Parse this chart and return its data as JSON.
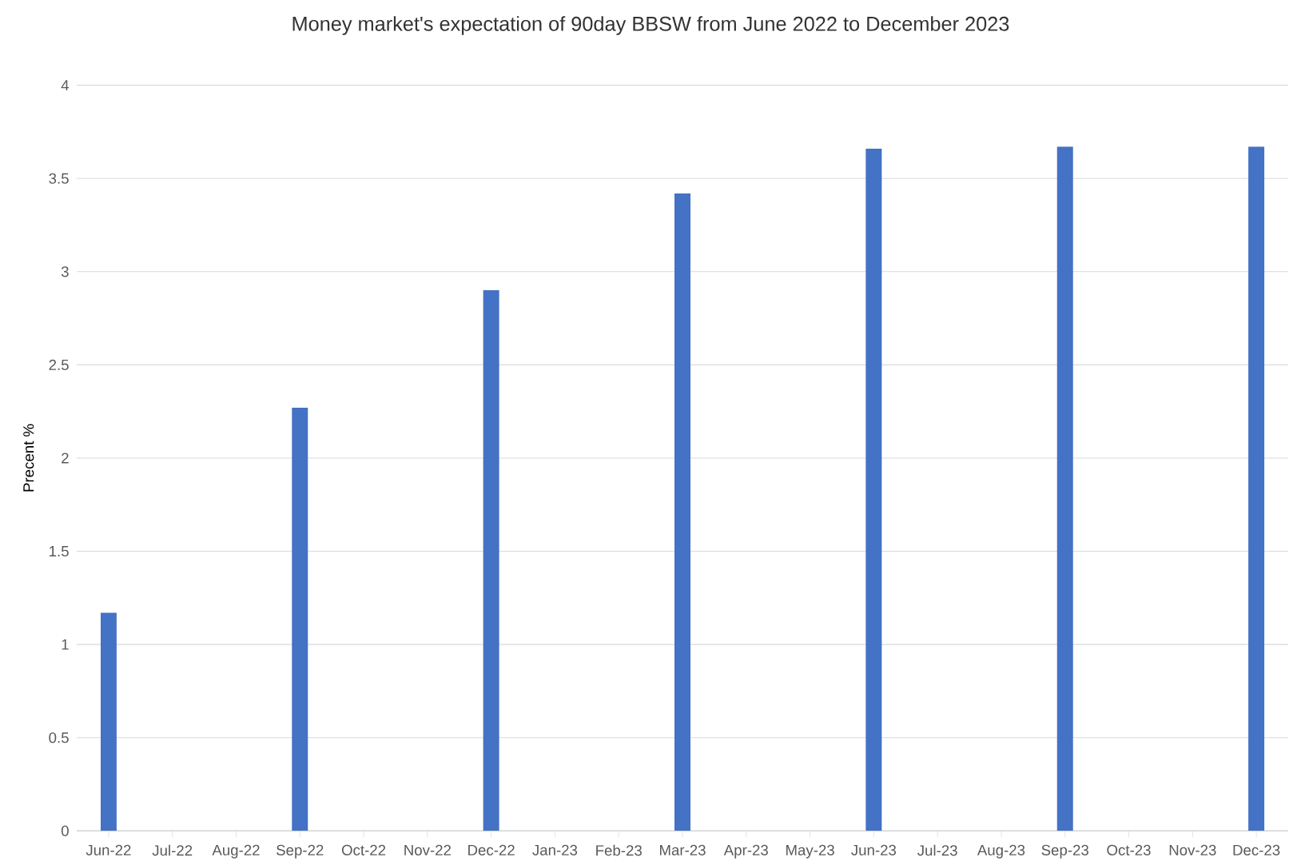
{
  "chart_data": {
    "type": "bar",
    "title": "Money market's expectation of 90day BBSW from June 2022 to December 2023",
    "ylabel": "Precent %",
    "categories": [
      "Jun-22",
      "Jul-22",
      "Aug-22",
      "Sep-22",
      "Oct-22",
      "Nov-22",
      "Dec-22",
      "Jan-23",
      "Feb-23",
      "Mar-23",
      "Apr-23",
      "May-23",
      "Jun-23",
      "Jul-23",
      "Aug-23",
      "Sep-23",
      "Oct-23",
      "Nov-23",
      "Dec-23"
    ],
    "values": [
      1.17,
      null,
      null,
      2.27,
      null,
      null,
      2.9,
      null,
      null,
      3.42,
      null,
      null,
      3.66,
      null,
      null,
      3.67,
      null,
      null,
      3.67
    ],
    "color": "#4472c4",
    "ylim": [
      0,
      4
    ],
    "yticks": [
      0,
      0.5,
      1,
      1.5,
      2,
      2.5,
      3,
      3.5,
      4
    ],
    "grid": "y"
  }
}
